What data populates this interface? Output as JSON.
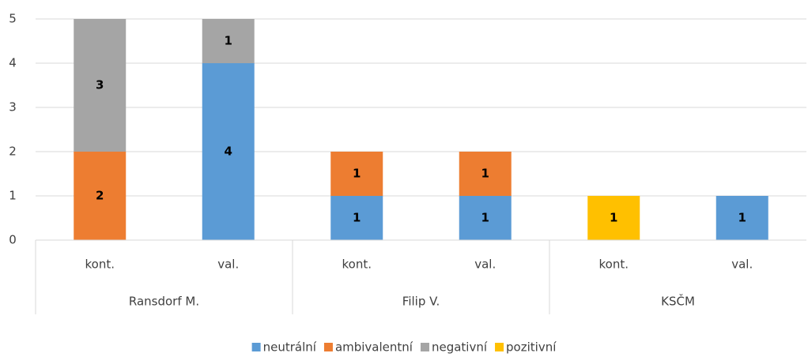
{
  "chart_data": {
    "type": "stacked_bar",
    "categories": [
      "kont.",
      "val.",
      "kont.",
      "val.",
      "kont.",
      "val."
    ],
    "groups": [
      "Ransdorf M.",
      "Filip V.",
      "KSČM"
    ],
    "series": [
      {
        "name": "neutrální",
        "color": "#5b9bd5",
        "values": [
          null,
          4,
          1,
          1,
          null,
          1
        ]
      },
      {
        "name": "ambivalentní",
        "color": "#ed7d31",
        "values": [
          2,
          null,
          1,
          1,
          null,
          null
        ]
      },
      {
        "name": "negativní",
        "color": "#a5a5a5",
        "values": [
          3,
          1,
          null,
          null,
          null,
          null
        ]
      },
      {
        "name": "pozitivní",
        "color": "#ffc000",
        "values": [
          null,
          null,
          null,
          null,
          1,
          null
        ]
      }
    ],
    "ylim": [
      0,
      5
    ],
    "yticks": [
      0,
      1,
      2,
      3,
      4,
      5
    ],
    "grid": true,
    "legend": "bottom"
  }
}
